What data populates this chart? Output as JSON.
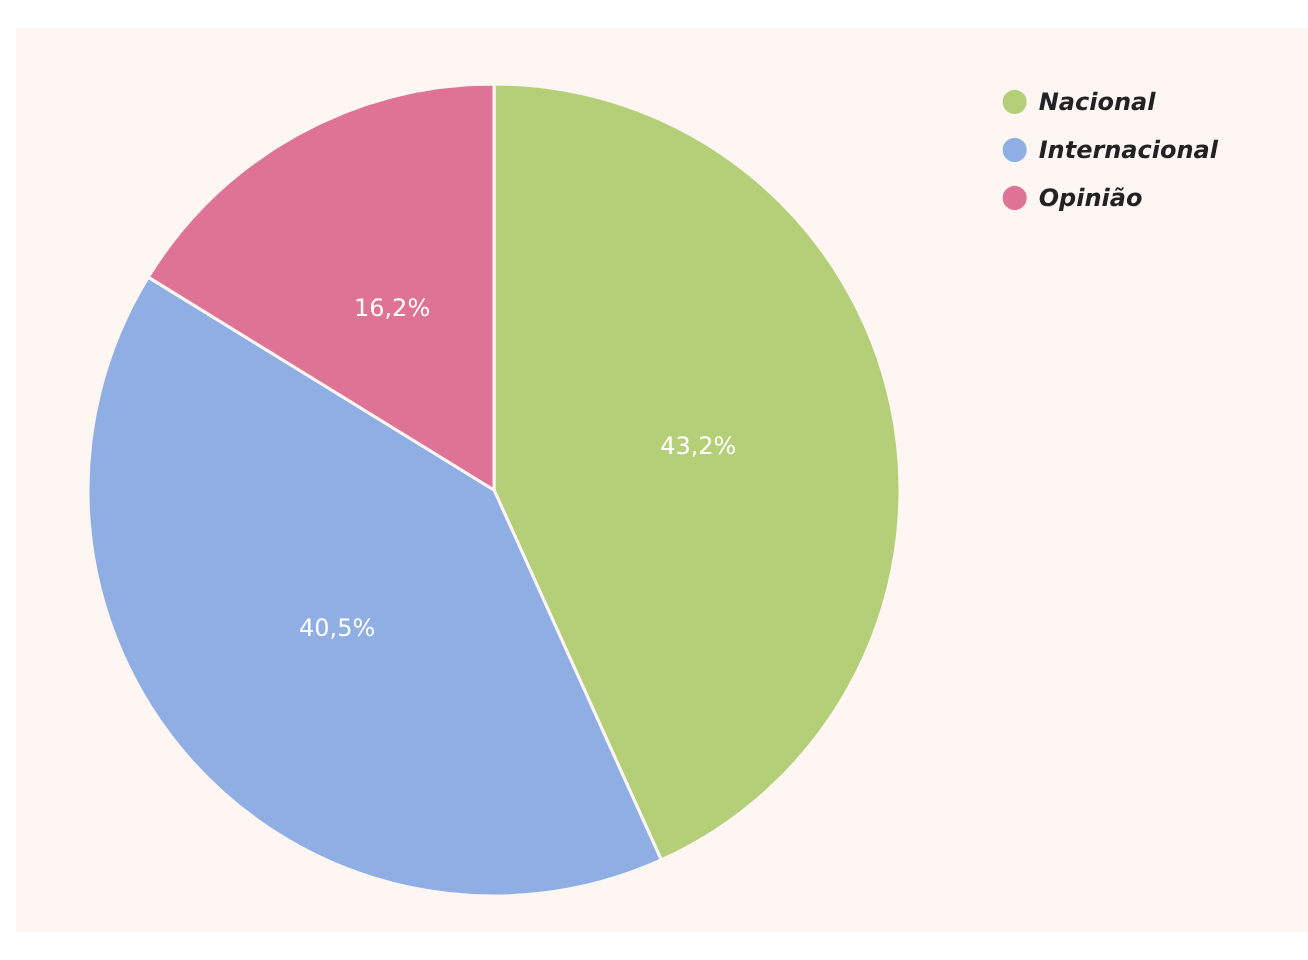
{
  "chart_data": {
    "type": "pie",
    "categories": [
      "Nacional",
      "Internacional",
      "Opinião"
    ],
    "values": [
      43.2,
      40.5,
      16.2
    ],
    "value_labels": [
      "43,2%",
      "40,5%",
      "16,2%"
    ],
    "colors": [
      "#b5cf78",
      "#8eaee4",
      "#de7396"
    ],
    "legend": "top right"
  }
}
